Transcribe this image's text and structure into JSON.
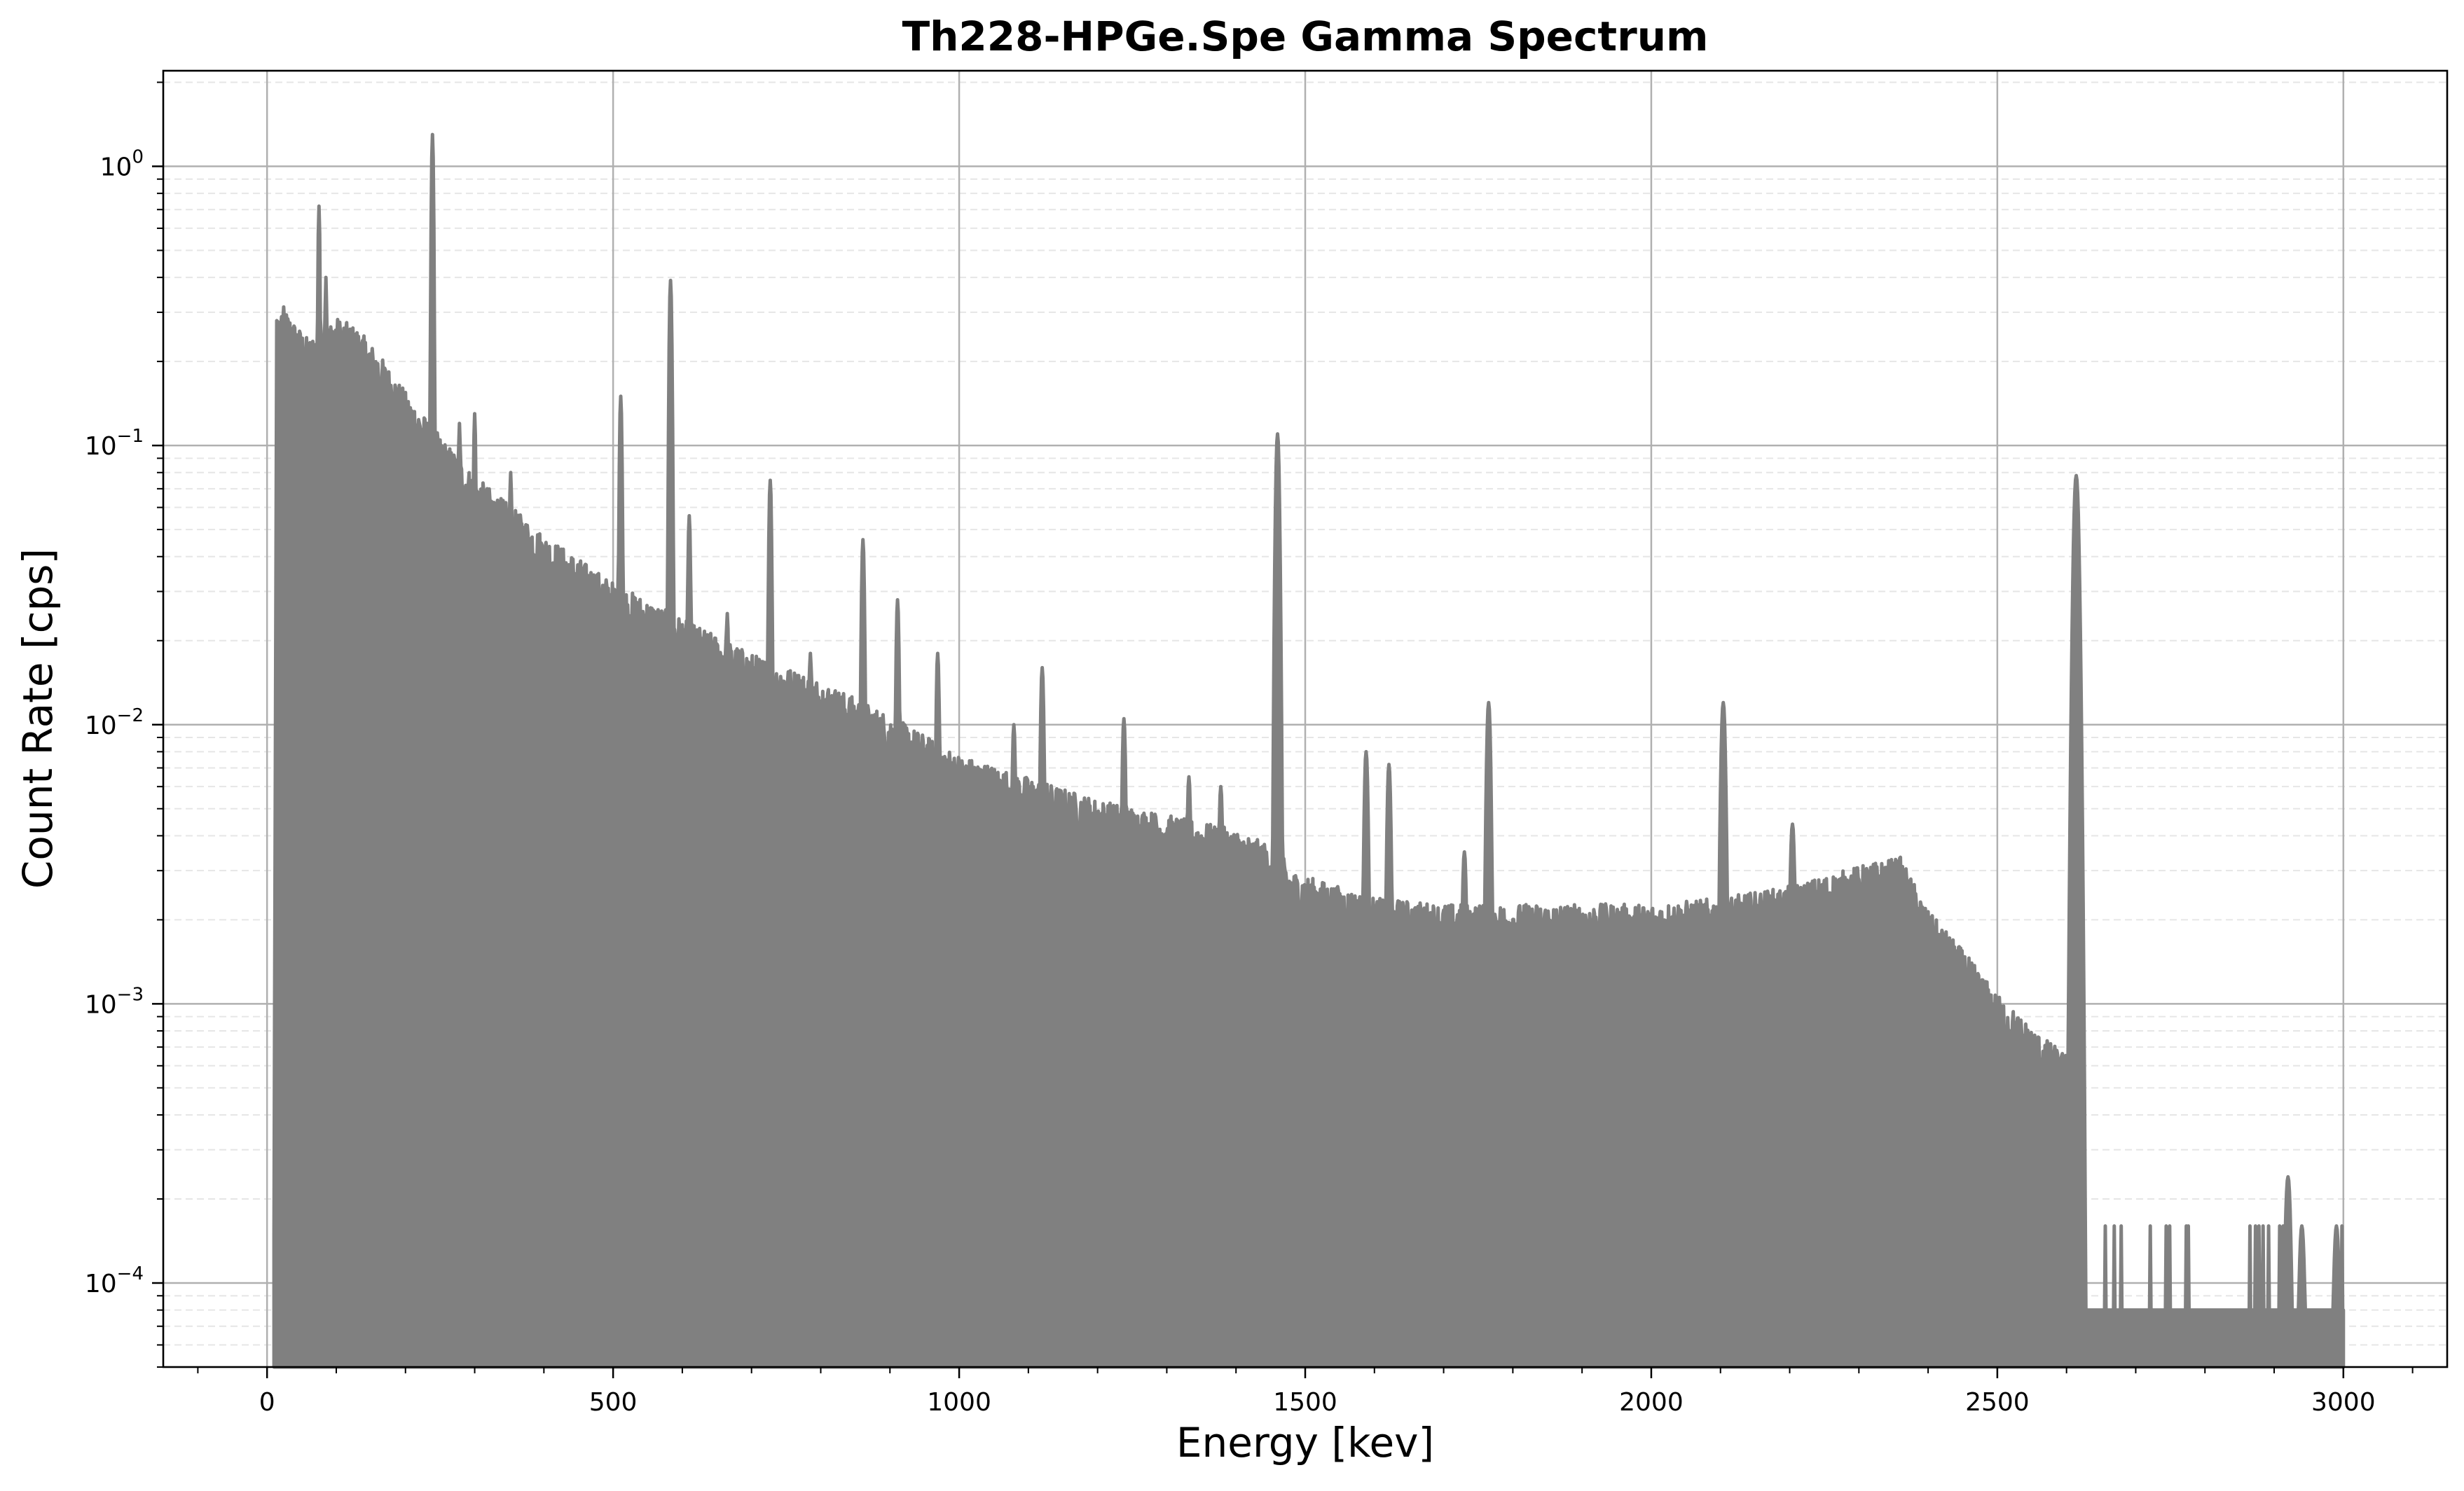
{
  "chart_data": {
    "type": "area",
    "title": "Th228-HPGe.Spe Gamma Spectrum",
    "xlabel": "Energy [kev]",
    "ylabel": "Count Rate [cps]",
    "x_scale": "linear",
    "y_scale": "log",
    "xlim": [
      -150,
      3150
    ],
    "ylim": [
      5e-05,
      2.2
    ],
    "x_ticks": [
      0,
      500,
      1000,
      1500,
      2000,
      2500,
      3000
    ],
    "x_tick_labels": [
      "0",
      "500",
      "1000",
      "1500",
      "2000",
      "2500",
      "3000"
    ],
    "y_ticks": [
      0.0001,
      0.001,
      0.01,
      0.1,
      1
    ],
    "y_tick_labels": [
      {
        "base": "10",
        "exp": "−4"
      },
      {
        "base": "10",
        "exp": "−3"
      },
      {
        "base": "10",
        "exp": "−2"
      },
      {
        "base": "10",
        "exp": "−1"
      },
      {
        "base": "10",
        "exp": "0"
      }
    ],
    "grid": {
      "major": true,
      "minor_y": true
    },
    "series": [
      {
        "color": "#808080",
        "continuum_energy": [
          10,
          14,
          20,
          40,
          60,
          80,
          100,
          130,
          160,
          200,
          250,
          300,
          400,
          500,
          600,
          700,
          800,
          900,
          1000,
          1200,
          1400,
          1460,
          1480,
          1500,
          1600,
          1700,
          1800,
          1900,
          2000,
          2100,
          2200,
          2300,
          2360,
          2400,
          2450,
          2500,
          2560,
          2600,
          2612,
          2620,
          3000
        ],
        "continuum_rate": [
          0.00015,
          0.28,
          0.27,
          0.23,
          0.2,
          0.22,
          0.24,
          0.22,
          0.18,
          0.13,
          0.09,
          0.065,
          0.04,
          0.027,
          0.02,
          0.015,
          0.012,
          0.009,
          0.0065,
          0.0045,
          0.0035,
          0.003,
          0.0025,
          0.0024,
          0.002,
          0.0019,
          0.0019,
          0.0019,
          0.0019,
          0.002,
          0.0022,
          0.0026,
          0.0028,
          0.0018,
          0.0013,
          0.0009,
          0.00065,
          0.00055,
          0.00055,
          8e-05,
          8e-05
        ],
        "peaks_energy": [
          75,
          85,
          239,
          278,
          300,
          338,
          352,
          463,
          511,
          583,
          610,
          665,
          727,
          768,
          785,
          861,
          911,
          969,
          1079,
          1120,
          1238,
          1332,
          1378,
          1460,
          1588,
          1621,
          1730,
          1765,
          2104,
          2204,
          2614,
          2920,
          2940,
          2990
        ],
        "peaks_rate": [
          0.72,
          0.4,
          1.3,
          0.12,
          0.13,
          0.057,
          0.08,
          0.03,
          0.15,
          0.39,
          0.056,
          0.025,
          0.075,
          0.015,
          0.018,
          0.046,
          0.028,
          0.018,
          0.01,
          0.016,
          0.0105,
          0.0065,
          0.006,
          0.11,
          0.008,
          0.0072,
          0.0035,
          0.012,
          0.012,
          0.0044,
          0.078,
          0.00024,
          0.00016,
          0.00016
        ]
      }
    ]
  }
}
